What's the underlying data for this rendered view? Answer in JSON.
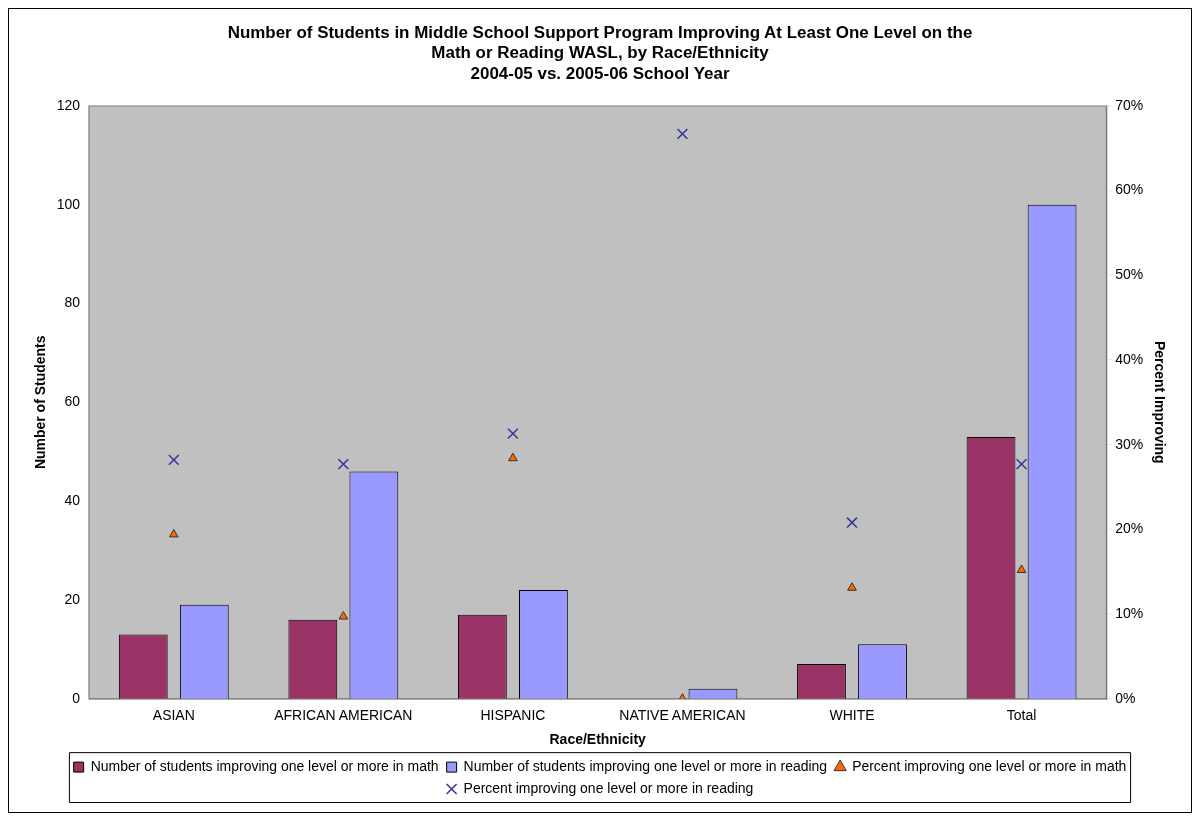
{
  "chart_data": {
    "type": "bar",
    "title": "Number of Students in Middle School Support Program Improving At Least One Level on the Math or Reading WASL, by Race/Ethnicity",
    "subtitle": "2004-05 vs. 2005-06 School Year",
    "xlabel": "Race/Ethnicity",
    "ylabel": "Number of Students",
    "y2label": "Percent Improving",
    "categories": [
      "ASIAN",
      "AFRICAN AMERICAN",
      "HISPANIC",
      "NATIVE AMERICAN",
      "WHITE",
      "Total"
    ],
    "series": [
      {
        "name": "Number of students improving one level or more in math",
        "color": "#993366",
        "values": [
          13,
          16,
          17,
          0,
          7,
          53
        ]
      },
      {
        "name": "Number of students improving one level or more in reading",
        "color": "#9999ff",
        "values": [
          19,
          46,
          22,
          2,
          11,
          100
        ]
      },
      {
        "name": "Percent improving one level or more in math",
        "type": "scatter",
        "axis": "y2",
        "marker": "triangle",
        "color": "#ff6600",
        "x": [
          "ASIAN",
          "AFRICAN AMERICAN",
          "HISPANIC",
          "NATIVE AMERICAN",
          "WHITE",
          "Total"
        ],
        "values": [
          19.4,
          9.7,
          28.4,
          0,
          13.1,
          15.2
        ]
      },
      {
        "name": "Percent improving one level or more in reading",
        "type": "scatter",
        "axis": "y2",
        "marker": "cross",
        "color": "#333399",
        "x": [
          "ASIAN",
          "AFRICAN AMERICAN",
          "HISPANIC",
          "NATIVE AMERICAN",
          "WHITE",
          "Total"
        ],
        "values": [
          28.2,
          27.7,
          31.3,
          66.7,
          20.8,
          27.7
        ]
      }
    ],
    "ylim": [
      0,
      120
    ],
    "yticks": [
      0,
      20,
      40,
      60,
      80,
      100,
      120
    ],
    "y2lim": [
      0,
      70
    ],
    "y2ticks": [
      {
        "value": 0,
        "label": "0%"
      },
      {
        "value": 10,
        "label": "10%"
      },
      {
        "value": 20,
        "label": "20%"
      },
      {
        "value": 30,
        "label": "30%"
      },
      {
        "value": 40,
        "label": "40%"
      },
      {
        "value": 50,
        "label": "50%"
      },
      {
        "value": 60,
        "label": "60%"
      },
      {
        "value": 70,
        "label": "70%"
      }
    ],
    "grid": false,
    "legend": "bottom"
  }
}
